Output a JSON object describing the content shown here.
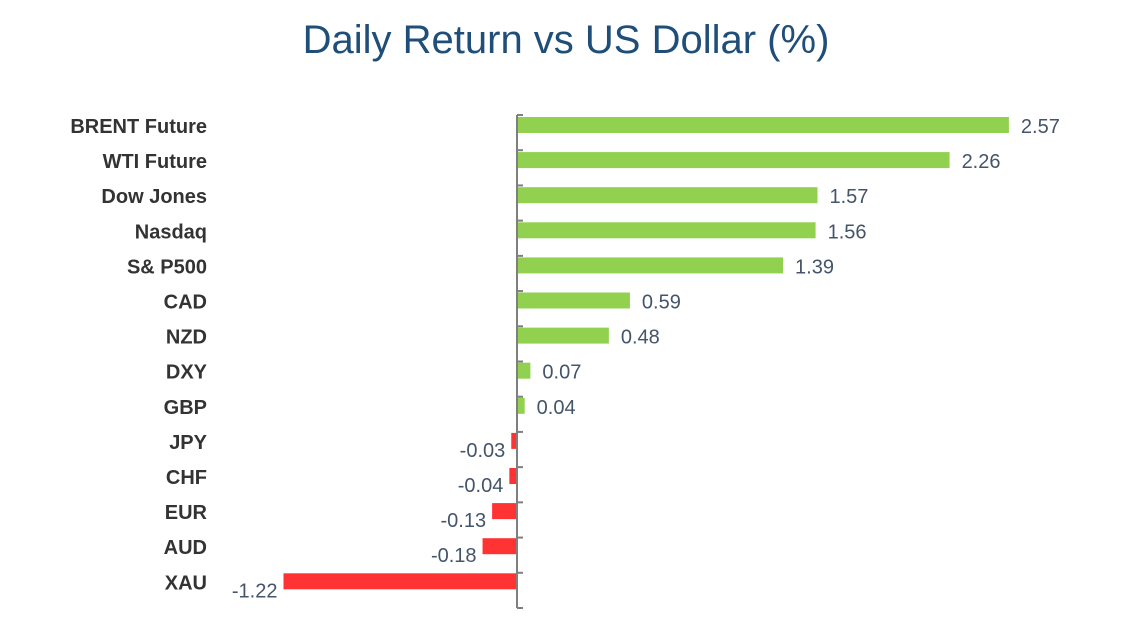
{
  "chart_data": {
    "type": "bar",
    "orientation": "horizontal",
    "title": "Daily Return vs US Dollar (%)",
    "xlabel": "",
    "ylabel": "",
    "categories": [
      "BRENT Future",
      "WTI Future",
      "Dow Jones",
      "Nasdaq",
      "S& P500",
      "CAD",
      "NZD",
      "DXY",
      "GBP",
      "JPY",
      "CHF",
      "EUR",
      "AUD",
      "XAU"
    ],
    "values": [
      2.57,
      2.26,
      1.57,
      1.56,
      1.39,
      0.59,
      0.48,
      0.07,
      0.04,
      -0.03,
      -0.04,
      -0.13,
      -0.18,
      -1.22
    ],
    "data_labels": [
      "2.57",
      "2.26",
      "1.57",
      "1.56",
      "1.39",
      "0.59",
      "0.48",
      "0.07",
      "0.04",
      "-0.03",
      "-0.04",
      "-0.13",
      "-0.18",
      "-1.22"
    ],
    "xlim": [
      -1.22,
      2.57
    ],
    "grid": false,
    "legend": "none",
    "colors": {
      "positive": "#92D050",
      "negative": "#FF3333",
      "title": "#1F4E79",
      "axis": "#7F7F7F",
      "category_text": "#333333",
      "value_text": "#44546A"
    }
  }
}
